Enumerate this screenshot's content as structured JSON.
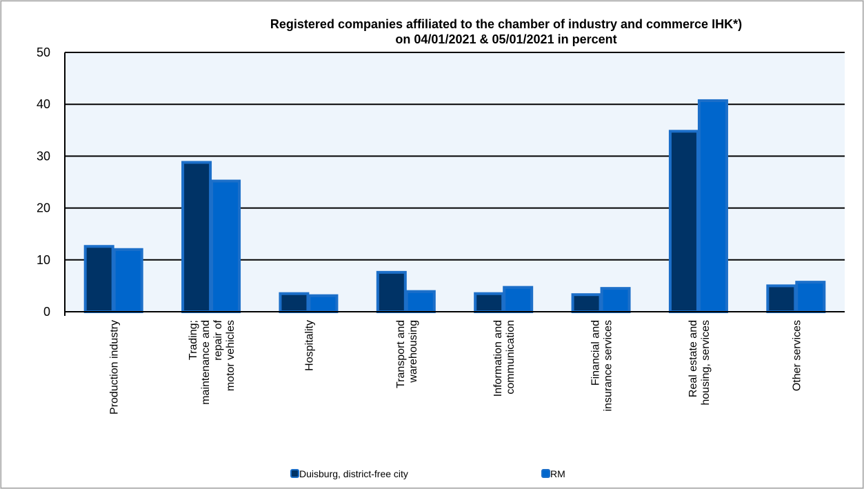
{
  "chart_data": {
    "type": "bar",
    "title_lines": [
      "Registered companies affiliated to the chamber of industry and commerce IHK*)",
      "on 04/01/2021 & 05/01/2021 in percent"
    ],
    "categories": [
      [
        "Production industry"
      ],
      [
        "Trading;",
        "maintenance and",
        "repair of",
        "motor vehicles"
      ],
      [
        "Hospitality"
      ],
      [
        "Transport and",
        "warehousing"
      ],
      [
        "Information and",
        "communication"
      ],
      [
        "Financial and",
        "insurance services"
      ],
      [
        "Real estate and",
        "housing, services"
      ],
      [
        "Other services"
      ]
    ],
    "series": [
      {
        "name": "Duisburg, district-free city",
        "values": [
          12.6,
          28.8,
          3.5,
          7.6,
          3.5,
          3.3,
          34.8,
          5.0
        ],
        "color": "#003366"
      },
      {
        "name": "RM",
        "values": [
          12.0,
          25.2,
          3.1,
          3.9,
          4.7,
          4.5,
          40.7,
          5.7
        ],
        "color": "#0066cc"
      }
    ],
    "ylim": [
      0,
      50
    ],
    "yticks": [
      0,
      10,
      20,
      30,
      40,
      50
    ],
    "grid": true,
    "legend_position": "bottom",
    "colors": {
      "plot_background": "#eef5fc",
      "bar_border": "#1c6fc9",
      "gridline": "#000000"
    }
  }
}
